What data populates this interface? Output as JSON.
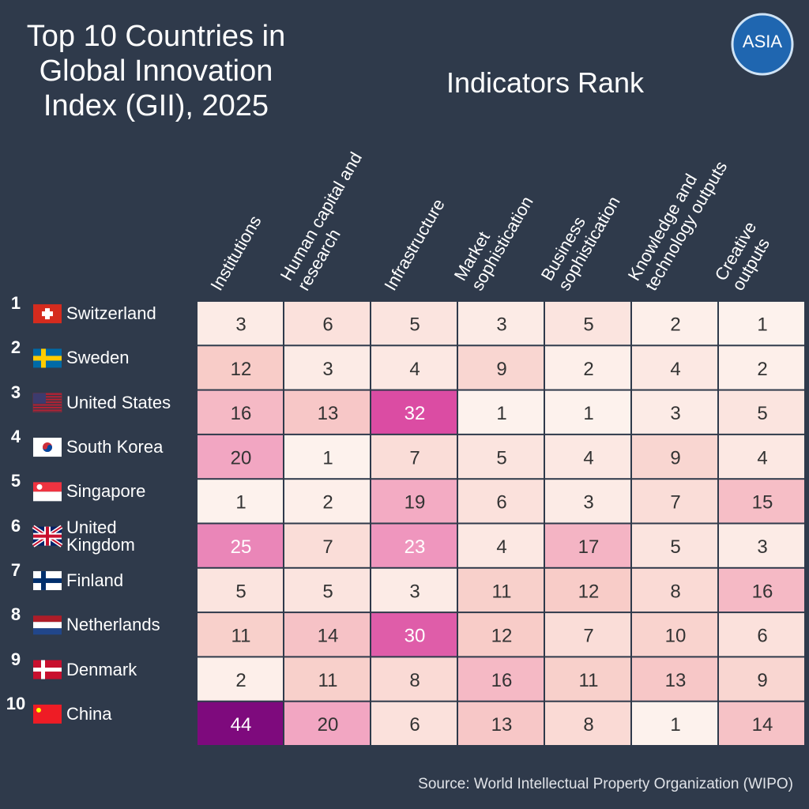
{
  "chart_data": {
    "type": "heatmap",
    "title": "Top 10 Countries in Global Innovation Index (GII), 2025",
    "subtitle": "Indicators Rank",
    "columns": [
      "Institutions",
      "Human capital and research",
      "Infrastructure",
      "Market sophistication",
      "Business sophistication",
      "Knowledge and technology outputs",
      "Creative outputs"
    ],
    "ranks": [
      1,
      2,
      3,
      4,
      5,
      6,
      7,
      8,
      9,
      10
    ],
    "rows": [
      "Switzerland",
      "Sweden",
      "United States",
      "South Korea",
      "Singapore",
      "United Kingdom",
      "Finland",
      "Netherlands",
      "Denmark",
      "China"
    ],
    "values": [
      [
        3,
        6,
        5,
        3,
        5,
        2,
        1
      ],
      [
        12,
        3,
        4,
        9,
        2,
        4,
        2
      ],
      [
        16,
        13,
        32,
        1,
        1,
        3,
        5
      ],
      [
        20,
        1,
        7,
        5,
        4,
        9,
        4
      ],
      [
        1,
        2,
        19,
        6,
        3,
        7,
        15
      ],
      [
        25,
        7,
        23,
        4,
        17,
        5,
        3
      ],
      [
        5,
        5,
        3,
        11,
        12,
        8,
        16
      ],
      [
        11,
        14,
        30,
        12,
        7,
        10,
        6
      ],
      [
        2,
        11,
        8,
        16,
        11,
        13,
        9
      ],
      [
        44,
        20,
        6,
        13,
        8,
        1,
        14
      ]
    ],
    "colors": [
      "#fdf2ed",
      "#f8cdc8",
      "#f09ac0",
      "#d8429f",
      "#7e0a7d"
    ],
    "source": "Source: World Intellectual Property Organization (WIPO)"
  },
  "logo": "ASIA"
}
